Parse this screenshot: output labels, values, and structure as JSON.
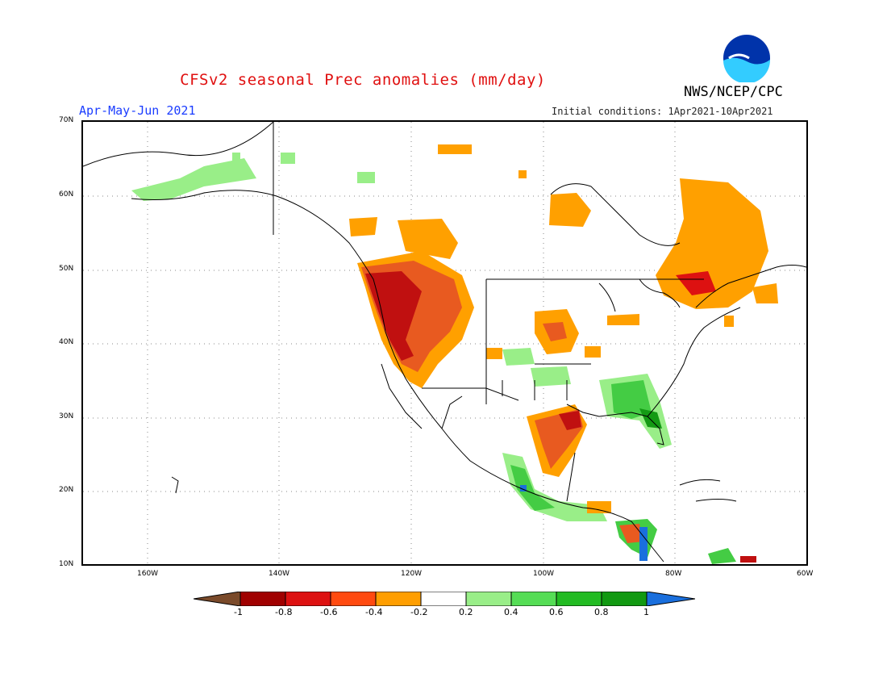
{
  "title": "CFSv2 seasonal Prec anomalies (mm/day)",
  "season": "Apr-May-Jun 2021",
  "initial_conditions": "Initial conditions: 1Apr2021-10Apr2021",
  "agency": "NWS/NCEP/CPC",
  "logo_text": "NOAA",
  "latitude_labels": [
    "70N",
    "60N",
    "50N",
    "40N",
    "30N",
    "20N",
    "10N"
  ],
  "longitude_labels": [
    "160W",
    "140W",
    "120W",
    "100W",
    "80W",
    "60W"
  ],
  "colorbar": {
    "labels": [
      "-1",
      "-0.8",
      "-0.6",
      "-0.4",
      "-0.2",
      "0.2",
      "0.4",
      "0.6",
      "0.8",
      "1"
    ],
    "colors": [
      "#7a4a2a",
      "#a00000",
      "#dd1111",
      "#ff4a10",
      "#ff9e00",
      "#ffffff",
      "#99ee88",
      "#55dd55",
      "#22bb22",
      "#119911",
      "#1a6fdd"
    ]
  },
  "anomaly_palette": {
    "dry_strong": "#c01010",
    "dry_moderate": "#e85a20",
    "dry_weak": "#ffa000",
    "wet_weak": "#99ee88",
    "wet_moderate": "#44cc44",
    "wet_strong": "#149a14",
    "wet_extreme": "#1a6fdd"
  }
}
